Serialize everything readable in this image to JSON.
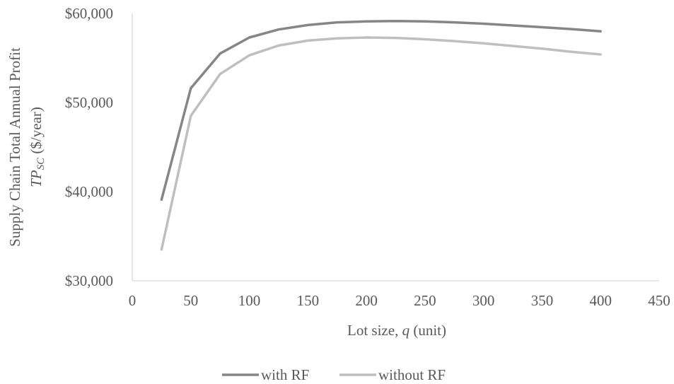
{
  "chart_data": {
    "type": "line",
    "title": "",
    "xlabel_pre": "Lot size, ",
    "xlabel_var": "q",
    "xlabel_post": " (unit)",
    "ylabel_line1": "Supply Chain Total Annual Profit",
    "ylabel_var": "TP",
    "ylabel_sub": "SC",
    "ylabel_post": " ($/year)",
    "xlim": [
      0,
      450
    ],
    "ylim": [
      30000,
      60000
    ],
    "xticks": [
      0,
      50,
      100,
      150,
      200,
      250,
      300,
      350,
      400,
      450
    ],
    "yticks": [
      30000,
      40000,
      50000,
      60000
    ],
    "ytick_labels": [
      "$30,000",
      "$40,000",
      "$50,000",
      "$60,000"
    ],
    "grid": false,
    "legend_position": "bottom",
    "x": [
      25,
      50,
      75,
      100,
      125,
      150,
      175,
      200,
      225,
      250,
      275,
      300,
      325,
      350,
      375,
      400
    ],
    "series": [
      {
        "name": "with RF",
        "color": "#868686",
        "values": [
          39100,
          51600,
          55500,
          57300,
          58200,
          58700,
          59000,
          59100,
          59150,
          59100,
          59000,
          58850,
          58650,
          58450,
          58250,
          58000
        ]
      },
      {
        "name": "without RF",
        "color": "#bfbfbf",
        "values": [
          33500,
          48500,
          53200,
          55300,
          56400,
          56950,
          57200,
          57300,
          57250,
          57100,
          56900,
          56650,
          56350,
          56050,
          55700,
          55400
        ]
      }
    ]
  }
}
